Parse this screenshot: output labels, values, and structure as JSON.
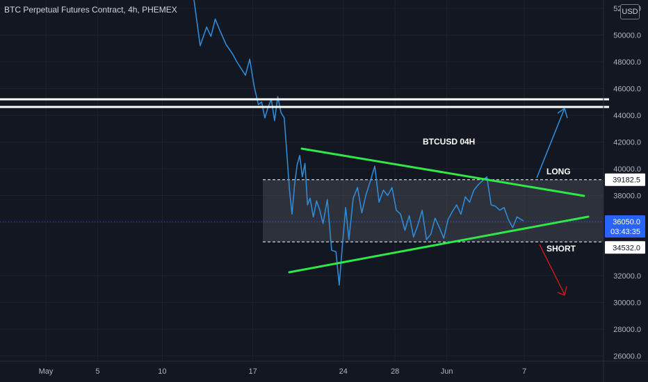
{
  "header": {
    "title": "BTC Perpetual Futures Contract, 4h, PHEMEX"
  },
  "currency_badge": "USD",
  "colors": {
    "background": "#131722",
    "price_line": "#2f8bd6",
    "triangle": "#2ee84a",
    "long_arrow": "#2f8bd6",
    "short_arrow": "#b71c1c",
    "range_fill": "#5d606b",
    "last_price_label": "#2962ff",
    "axis_text": "#b2b5be"
  },
  "chart_data": {
    "type": "line",
    "title": "BTCUSD 04H",
    "xlabel": "",
    "ylabel": "",
    "ylim": [
      25000,
      52500
    ],
    "x_ticks": [
      "May",
      "5",
      "10",
      "17",
      "24",
      "28",
      "Jun",
      "7"
    ],
    "y_ticks": [
      "52000.0",
      "50000.0",
      "48000.0",
      "46000.0",
      "44000.0",
      "42000.0",
      "40000.0",
      "38000.0",
      "36000.0",
      "32000.0",
      "30000.0",
      "28000.0",
      "26000.0"
    ],
    "series": [
      {
        "x": [
          "2021-05-12",
          "2021-05-12",
          "2021-05-13",
          "2021-05-13",
          "2021-05-13",
          "2021-05-14",
          "2021-05-14",
          "2021-05-15",
          "2021-05-15",
          "2021-05-15",
          "2021-05-16",
          "2021-05-16",
          "2021-05-16",
          "2021-05-17",
          "2021-05-17",
          "2021-05-17",
          "2021-05-17",
          "2021-05-18",
          "2021-05-18",
          "2021-05-18",
          "2021-05-18",
          "2021-05-19",
          "2021-05-19",
          "2021-05-19",
          "2021-05-19",
          "2021-05-19",
          "2021-05-20",
          "2021-05-20",
          "2021-05-20",
          "2021-05-20",
          "2021-05-20",
          "2021-05-21",
          "2021-05-21",
          "2021-05-21",
          "2021-05-21",
          "2021-05-22",
          "2021-05-22",
          "2021-05-22",
          "2021-05-23",
          "2021-05-23",
          "2021-05-23",
          "2021-05-23",
          "2021-05-24",
          "2021-05-24",
          "2021-05-24",
          "2021-05-25",
          "2021-05-25",
          "2021-05-25",
          "2021-05-26",
          "2021-05-26",
          "2021-05-26",
          "2021-05-27",
          "2021-05-27",
          "2021-05-27",
          "2021-05-28",
          "2021-05-28",
          "2021-05-28",
          "2021-05-29",
          "2021-05-29",
          "2021-05-29",
          "2021-05-30",
          "2021-05-30",
          "2021-05-30",
          "2021-05-31",
          "2021-05-31",
          "2021-05-31",
          "2021-06-01",
          "2021-06-01",
          "2021-06-01",
          "2021-06-02",
          "2021-06-02",
          "2021-06-02",
          "2021-06-03",
          "2021-06-03",
          "2021-06-03",
          "2021-06-04",
          "2021-06-04",
          "2021-06-04",
          "2021-06-05",
          "2021-06-05",
          "2021-06-05",
          "2021-06-06",
          "2021-06-06"
        ],
        "values": [
          52800,
          49200,
          50600,
          49900,
          51200,
          50400,
          49300,
          48600,
          48000,
          47500,
          47000,
          48200,
          46200,
          44800,
          45000,
          43800,
          44600,
          45200,
          43600,
          45400,
          44200,
          43800,
          41200,
          38500,
          36600,
          38800,
          40300,
          41000,
          39400,
          40400,
          37300,
          37800,
          36400,
          37600,
          36900,
          35900,
          37700,
          33900,
          33800,
          31300,
          34300,
          37100,
          34700,
          37800,
          38600,
          36700,
          38100,
          39100,
          40200,
          37500,
          38400,
          38000,
          38600,
          36900,
          36600,
          35400,
          36500,
          34900,
          35800,
          36900,
          34700,
          35100,
          36300,
          35600,
          34800,
          36200,
          36800,
          37300,
          36600,
          37900,
          37500,
          38400,
          38800,
          39100,
          39400,
          37300,
          37200,
          36900,
          37100,
          36200,
          35600,
          36400,
          36100
        ]
      }
    ],
    "annotations": {
      "range_upper": "39182.5",
      "range_lower": "34532.0",
      "last_price": "36050.0",
      "countdown": "03:43:35",
      "long_label": "LONG",
      "short_label": "SHORT",
      "chart_label": "BTCUSD 04H"
    }
  }
}
